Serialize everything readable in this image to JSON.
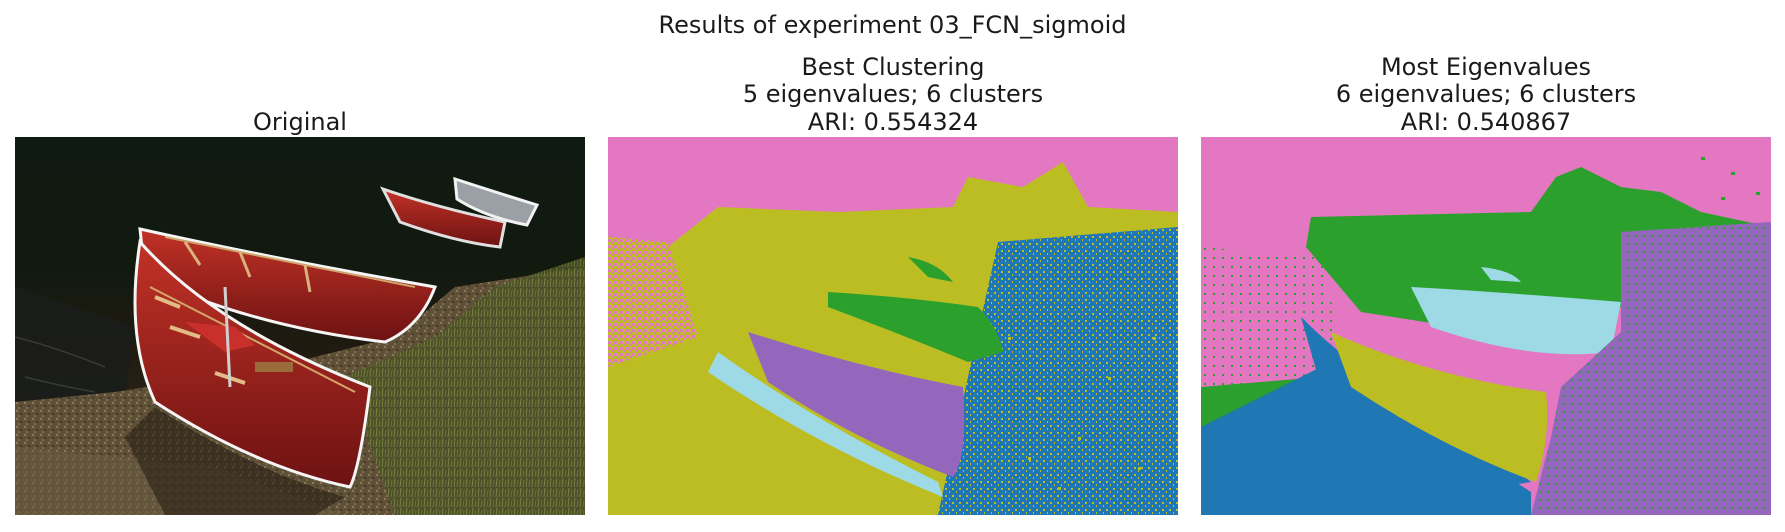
{
  "figure": {
    "suptitle": "Results of experiment 03_FCN_sigmoid"
  },
  "panels": [
    {
      "id": "original",
      "title_lines": [
        "Original"
      ]
    },
    {
      "id": "best",
      "title_lines": [
        "Best Clustering",
        "5 eigenvalues; 6 clusters",
        "ARI: 0.554324"
      ]
    },
    {
      "id": "most",
      "title_lines": [
        "Most Eigenvalues",
        "6 eigenvalues; 6 clusters",
        "ARI: 0.540867"
      ]
    }
  ],
  "palette": {
    "pink": "#e377c2",
    "olive": "#bcbd22",
    "blue": "#1f77b4",
    "green": "#2ca02c",
    "purple": "#9467bd",
    "cyan": "#9edae5",
    "canoe_red": "#9e1c1c",
    "dark_bg": "#0d1710"
  }
}
